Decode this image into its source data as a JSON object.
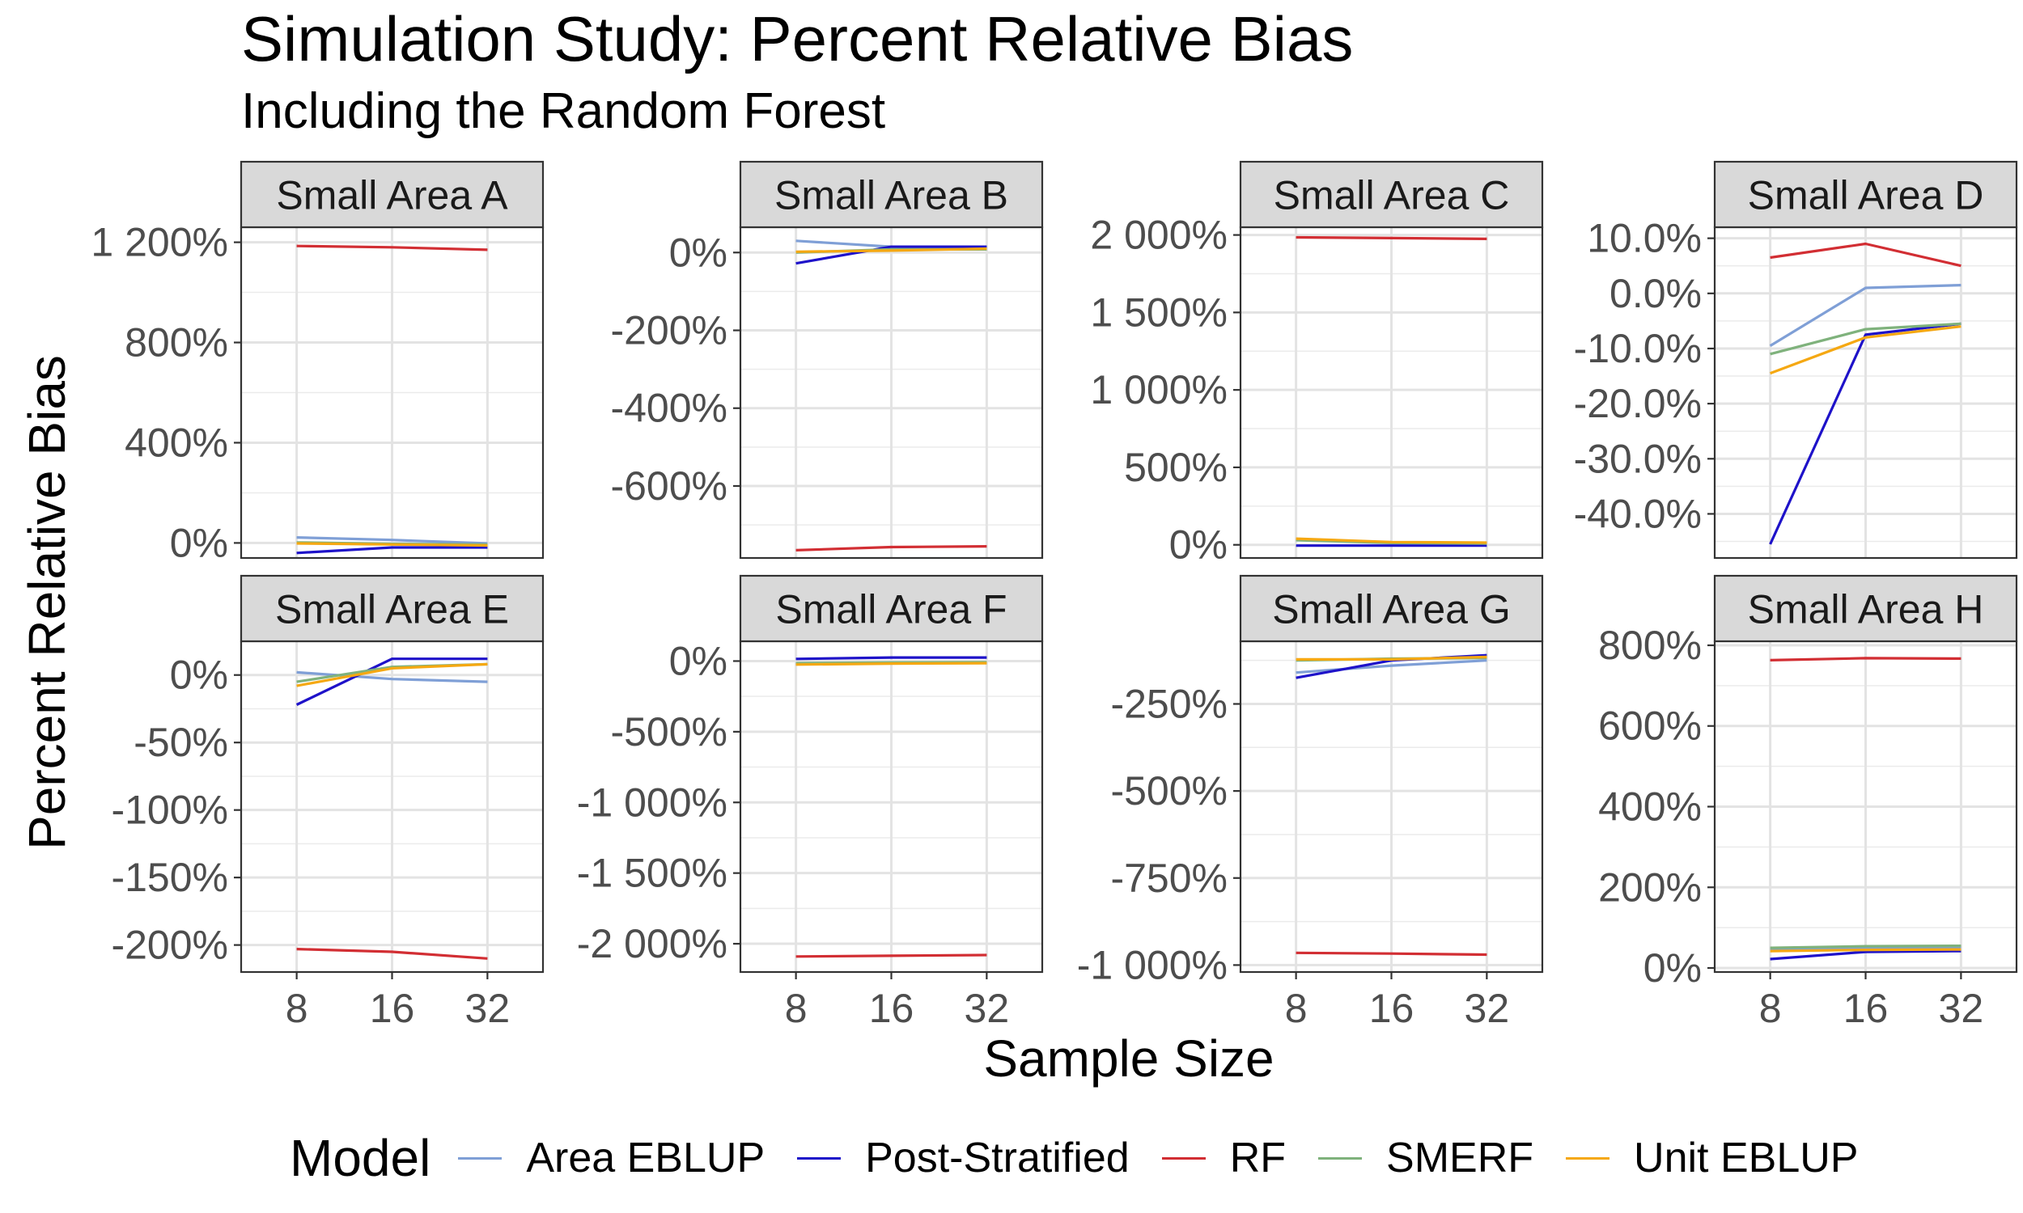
{
  "title": "Simulation Study: Percent Relative Bias",
  "subtitle": "Including the Random Forest",
  "chart_data": {
    "type": "line",
    "xlabel": "Sample Size",
    "ylabel": "Percent Relative Bias",
    "x": [
      8,
      16,
      32
    ],
    "x_tick_labels": [
      "8",
      "16",
      "32"
    ],
    "grid": true,
    "legend": {
      "title": "Model",
      "position": "bottom",
      "entries": [
        {
          "name": "Area EBLUP",
          "color": "#7f9fd6"
        },
        {
          "name": "Post-Stratified",
          "color": "#1e12c9"
        },
        {
          "name": "RF",
          "color": "#d22e33"
        },
        {
          "name": "SMERF",
          "color": "#7fb27c"
        },
        {
          "name": "Unit EBLUP",
          "color": "#f5a812"
        }
      ]
    },
    "panels": [
      {
        "label": "Small Area A",
        "ylim": [
          -60,
          1260
        ],
        "yticks": [
          0,
          400,
          800,
          1200
        ],
        "ytick_labels": [
          "0%",
          "400%",
          "800%",
          "1 200%"
        ],
        "series": [
          {
            "name": "Area EBLUP",
            "values": [
              22,
              12,
              -2
            ]
          },
          {
            "name": "Post-Stratified",
            "values": [
              -40,
              -18,
              -18
            ]
          },
          {
            "name": "RF",
            "values": [
              1185,
              1180,
              1170
            ]
          },
          {
            "name": "SMERF",
            "values": [
              2,
              -4,
              -6
            ]
          },
          {
            "name": "Unit EBLUP",
            "values": [
              -2,
              -6,
              -10
            ]
          }
        ]
      },
      {
        "label": "Small Area B",
        "ylim": [
          -785,
          65
        ],
        "yticks": [
          -600,
          -400,
          -200,
          0
        ],
        "ytick_labels": [
          "-600%",
          "-400%",
          "-200%",
          "0%"
        ],
        "series": [
          {
            "name": "Area EBLUP",
            "values": [
              30,
              15,
              12
            ]
          },
          {
            "name": "Post-Stratified",
            "values": [
              -28,
              15,
              15
            ]
          },
          {
            "name": "RF",
            "values": [
              -765,
              -757,
              -755
            ]
          },
          {
            "name": "SMERF",
            "values": [
              0,
              8,
              8
            ]
          },
          {
            "name": "Unit EBLUP",
            "values": [
              2,
              5,
              10
            ]
          }
        ]
      },
      {
        "label": "Small Area C",
        "ylim": [
          -85,
          2050
        ],
        "yticks": [
          0,
          500,
          1000,
          1500,
          2000
        ],
        "ytick_labels": [
          "0%",
          "500%",
          "1 000%",
          "1 500%",
          "2 000%"
        ],
        "series": [
          {
            "name": "Area EBLUP",
            "values": [
              35,
              15,
              10
            ]
          },
          {
            "name": "Post-Stratified",
            "values": [
              -5,
              -5,
              -5
            ]
          },
          {
            "name": "RF",
            "values": [
              1985,
              1980,
              1975
            ]
          },
          {
            "name": "SMERF",
            "values": [
              30,
              12,
              8
            ]
          },
          {
            "name": "Unit EBLUP",
            "values": [
              40,
              18,
              14
            ]
          }
        ]
      },
      {
        "label": "Small Area D",
        "ylim": [
          -48,
          12
        ],
        "yticks": [
          -40,
          -30,
          -20,
          -10,
          0,
          10
        ],
        "ytick_labels": [
          "-40.0%",
          "-30.0%",
          "-20.0%",
          "-10.0%",
          "0.0%",
          "10.0%"
        ],
        "series": [
          {
            "name": "Area EBLUP",
            "values": [
              -9.5,
              1,
              1.5
            ]
          },
          {
            "name": "Post-Stratified",
            "values": [
              -45.5,
              -7.5,
              -5.5
            ]
          },
          {
            "name": "RF",
            "values": [
              6.5,
              9,
              5
            ]
          },
          {
            "name": "SMERF",
            "values": [
              -11,
              -6.5,
              -5.5
            ]
          },
          {
            "name": "Unit EBLUP",
            "values": [
              -14.5,
              -8,
              -6
            ]
          }
        ]
      },
      {
        "label": "Small Area E",
        "ylim": [
          -220,
          25
        ],
        "yticks": [
          -200,
          -150,
          -100,
          -50,
          0
        ],
        "ytick_labels": [
          "-200%",
          "-150%",
          "-100%",
          "-50%",
          "0%"
        ],
        "series": [
          {
            "name": "Area EBLUP",
            "values": [
              2,
              -3,
              -5
            ]
          },
          {
            "name": "Post-Stratified",
            "values": [
              -22,
              12,
              12
            ]
          },
          {
            "name": "RF",
            "values": [
              -203,
              -205,
              -210
            ]
          },
          {
            "name": "SMERF",
            "values": [
              -5,
              6,
              8
            ]
          },
          {
            "name": "Unit EBLUP",
            "values": [
              -8,
              5,
              8
            ]
          }
        ]
      },
      {
        "label": "Small Area F",
        "ylim": [
          -2200,
          140
        ],
        "yticks": [
          -2000,
          -1500,
          -1000,
          -500,
          0
        ],
        "ytick_labels": [
          "-2 000%",
          "-1 500%",
          "-1 000%",
          "-500%",
          "0%"
        ],
        "series": [
          {
            "name": "Area EBLUP",
            "values": [
              -20,
              -15,
              -10
            ]
          },
          {
            "name": "Post-Stratified",
            "values": [
              15,
              25,
              25
            ]
          },
          {
            "name": "RF",
            "values": [
              -2090,
              -2085,
              -2080
            ]
          },
          {
            "name": "SMERF",
            "values": [
              -15,
              -10,
              -8
            ]
          },
          {
            "name": "Unit EBLUP",
            "values": [
              -25,
              -18,
              -15
            ]
          }
        ]
      },
      {
        "label": "Small Area G",
        "ylim": [
          -1020,
          -70
        ],
        "yticks": [
          -1000,
          -750,
          -500,
          -250
        ],
        "ytick_labels": [
          "-1 000%",
          "-750%",
          "-500%",
          "-250%"
        ],
        "series": [
          {
            "name": "Area EBLUP",
            "values": [
              -160,
              -140,
              -125
            ]
          },
          {
            "name": "Post-Stratified",
            "values": [
              -175,
              -125,
              -110
            ]
          },
          {
            "name": "RF",
            "values": [
              -965,
              -967,
              -970
            ]
          },
          {
            "name": "SMERF",
            "values": [
              -125,
              -120,
              -118
            ]
          },
          {
            "name": "Unit EBLUP",
            "values": [
              -122,
              -122,
              -115
            ]
          }
        ]
      },
      {
        "label": "Small Area H",
        "ylim": [
          -10,
          810
        ],
        "yticks": [
          0,
          200,
          400,
          600,
          800
        ],
        "ytick_labels": [
          "0%",
          "200%",
          "400%",
          "600%",
          "800%"
        ],
        "series": [
          {
            "name": "Area EBLUP",
            "values": [
              48,
              50,
              52
            ]
          },
          {
            "name": "Post-Stratified",
            "values": [
              22,
              40,
              42
            ]
          },
          {
            "name": "RF",
            "values": [
              763,
              768,
              767
            ]
          },
          {
            "name": "SMERF",
            "values": [
              50,
              54,
              55
            ]
          },
          {
            "name": "Unit EBLUP",
            "values": [
              42,
              45,
              46
            ]
          }
        ]
      }
    ]
  }
}
